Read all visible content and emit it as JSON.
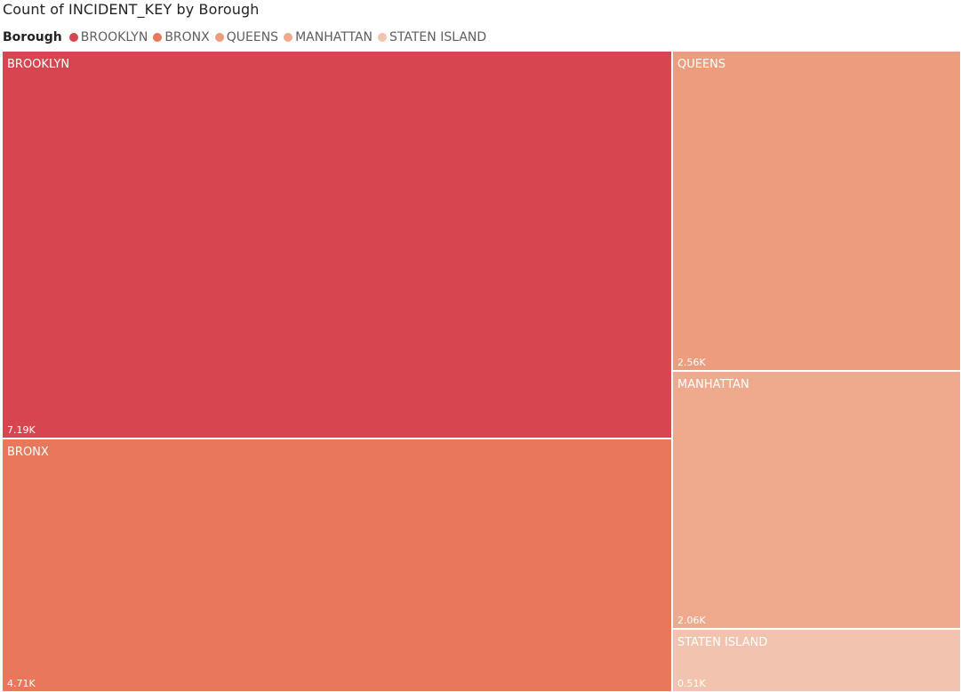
{
  "chart_data": {
    "type": "treemap",
    "title": "Count of INCIDENT_KEY by Borough",
    "legend": {
      "title": "Borough",
      "position": "top-left"
    },
    "series": [
      {
        "name": "BROOKLYN",
        "value": 7190,
        "value_label": "7.19K",
        "color": "#d64550"
      },
      {
        "name": "BRONX",
        "value": 4710,
        "value_label": "4.71K",
        "color": "#e8775c"
      },
      {
        "name": "QUEENS",
        "value": 2560,
        "value_label": "2.56K",
        "color": "#ed9d7d"
      },
      {
        "name": "MANHATTAN",
        "value": 2060,
        "value_label": "2.06K",
        "color": "#efa98c"
      },
      {
        "name": "STATEN ISLAND",
        "value": 510,
        "value_label": "0.51K",
        "color": "#f2c3ae"
      }
    ]
  }
}
